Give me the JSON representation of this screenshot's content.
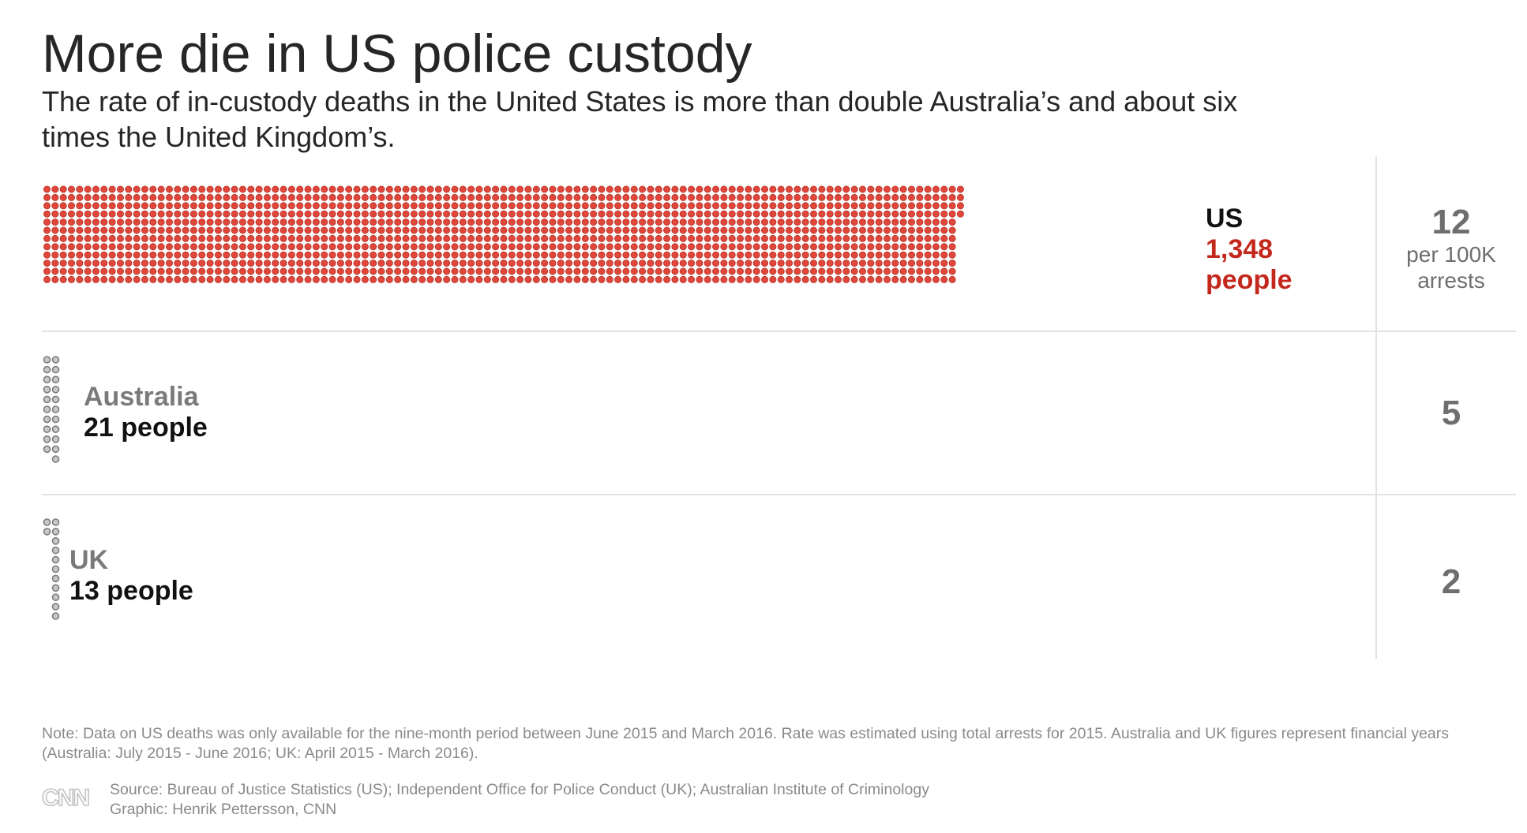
{
  "title": "More die in US police custody",
  "subtitle": "The rate of in-custody deaths in the United States is more than double Australia’s and about six times the United Kingdom’s.",
  "chart_data": {
    "type": "dot-matrix",
    "title": "More die in US police custody",
    "subtitle": "The rate of in-custody deaths in the United States is more than double Australia’s and about six times the United Kingdom’s.",
    "series": [
      {
        "name": "US",
        "deaths": 1348,
        "count_label": "1,348",
        "unit_label": "people",
        "rate": 12,
        "rate_label": "12",
        "rate_unit": "per 100K arrests",
        "color": "#e0463a",
        "stroke": "#b53127",
        "label_color": "#c4281c"
      },
      {
        "name": "Australia",
        "deaths": 21,
        "count_label": "21 people",
        "rate": 5,
        "rate_label": "5",
        "color": "#c8c8c8",
        "stroke": "#7b7b7b",
        "label_color": "#111111"
      },
      {
        "name": "UK",
        "deaths": 13,
        "count_label": "13 people",
        "rate": 2,
        "rate_label": "2",
        "color": "#c8c8c8",
        "stroke": "#7b7b7b",
        "label_color": "#111111"
      }
    ],
    "grid": false,
    "legend": "none"
  },
  "note": "Note: Data on US deaths was only available for the nine-month period between June 2015 and March 2016. Rate was estimated using total arrests for 2015. Australia and UK figures represent financial years (Australia: July 2015 - June 2016; UK: April 2015 - March 2016).",
  "source": "Source: Bureau of Justice Statistics (US); Independent Office for Police Conduct (UK); Australian Institute of Criminology",
  "credit": "Graphic: Henrik Pettersson, CNN",
  "logo": "CNN",
  "colors": {
    "text": "#262626",
    "muted": "#6e6e6e",
    "divider": "#e2e2e2"
  }
}
